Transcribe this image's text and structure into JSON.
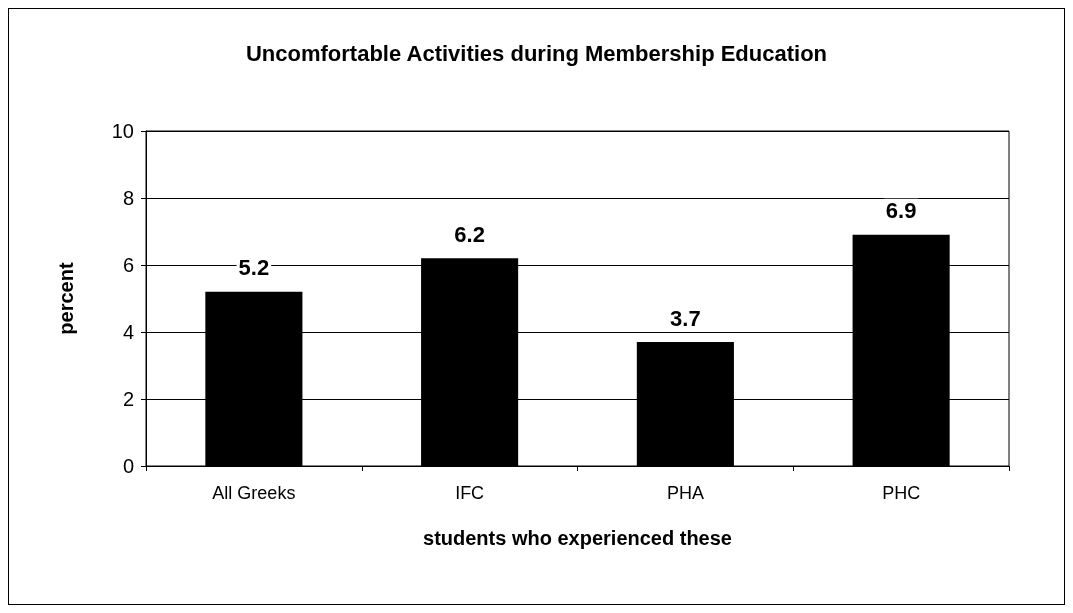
{
  "chart_data": {
    "type": "bar",
    "title": "Uncomfortable Activities during Membership Education",
    "xlabel": "students who experienced these",
    "ylabel": "percent",
    "categories": [
      "All Greeks",
      "IFC",
      "PHA",
      "PHC"
    ],
    "values": [
      5.2,
      6.2,
      3.7,
      6.9
    ],
    "color": "#000000",
    "data_labels": true,
    "ylim": [
      0,
      10
    ],
    "yticks": [
      0,
      2,
      4,
      6,
      8,
      10
    ],
    "grid": "y"
  }
}
